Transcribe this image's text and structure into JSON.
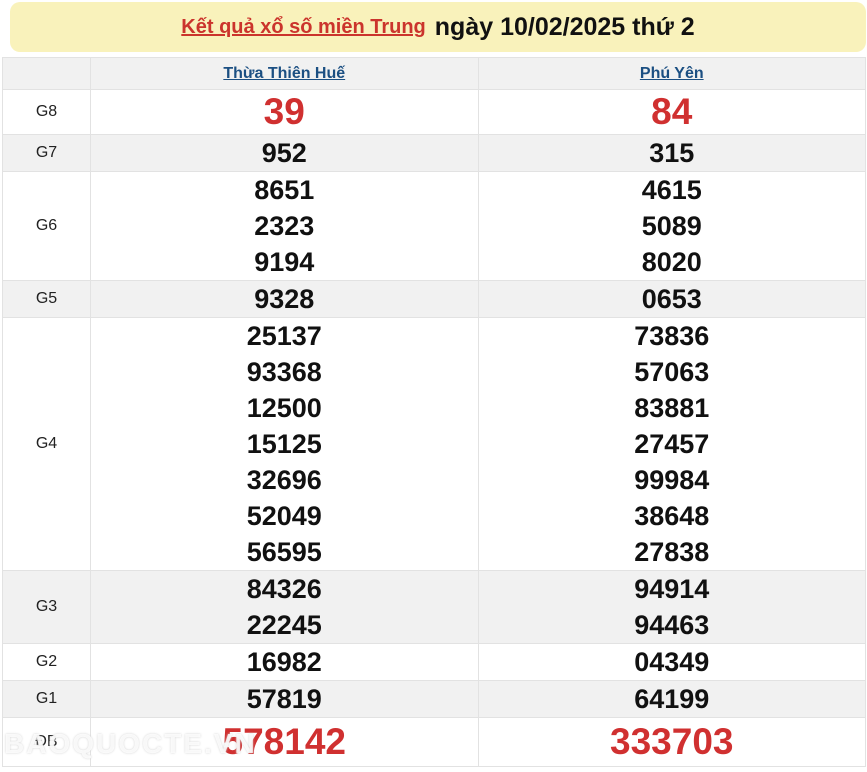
{
  "title": {
    "link": "Kết quả xổ số miền Trung",
    "rest": "ngày 10/02/2025 thứ 2"
  },
  "columns": [
    "Thừa Thiên Huế",
    "Phú Yên"
  ],
  "rows": [
    {
      "label": "G8",
      "highlight": true,
      "cells": [
        [
          "39"
        ],
        [
          "84"
        ]
      ]
    },
    {
      "label": "G7",
      "highlight": false,
      "cells": [
        [
          "952"
        ],
        [
          "315"
        ]
      ]
    },
    {
      "label": "G6",
      "highlight": false,
      "cells": [
        [
          "8651",
          "2323",
          "9194"
        ],
        [
          "4615",
          "5089",
          "8020"
        ]
      ]
    },
    {
      "label": "G5",
      "highlight": false,
      "cells": [
        [
          "9328"
        ],
        [
          "0653"
        ]
      ]
    },
    {
      "label": "G4",
      "highlight": false,
      "cells": [
        [
          "25137",
          "93368",
          "12500",
          "15125",
          "32696",
          "52049",
          "56595"
        ],
        [
          "73836",
          "57063",
          "83881",
          "27457",
          "99984",
          "38648",
          "27838"
        ]
      ]
    },
    {
      "label": "G3",
      "highlight": false,
      "cells": [
        [
          "84326",
          "22245"
        ],
        [
          "94914",
          "94463"
        ]
      ]
    },
    {
      "label": "G2",
      "highlight": false,
      "cells": [
        [
          "16982"
        ],
        [
          "04349"
        ]
      ]
    },
    {
      "label": "G1",
      "highlight": false,
      "cells": [
        [
          "57819"
        ],
        [
          "64199"
        ]
      ]
    },
    {
      "label": "ĐB",
      "highlight": true,
      "cells": [
        [
          "578142"
        ],
        [
          "333703"
        ]
      ]
    }
  ],
  "watermark": "BAOQUOCTE.VN",
  "colors": {
    "title_background": "#f9f2bb",
    "title_link_red": "#cb342c",
    "number_red": "#d03030",
    "province_link_blue": "#1b4f82",
    "alt_row_gray": "#f1f1f1",
    "border_gray": "#e2e2e2"
  }
}
